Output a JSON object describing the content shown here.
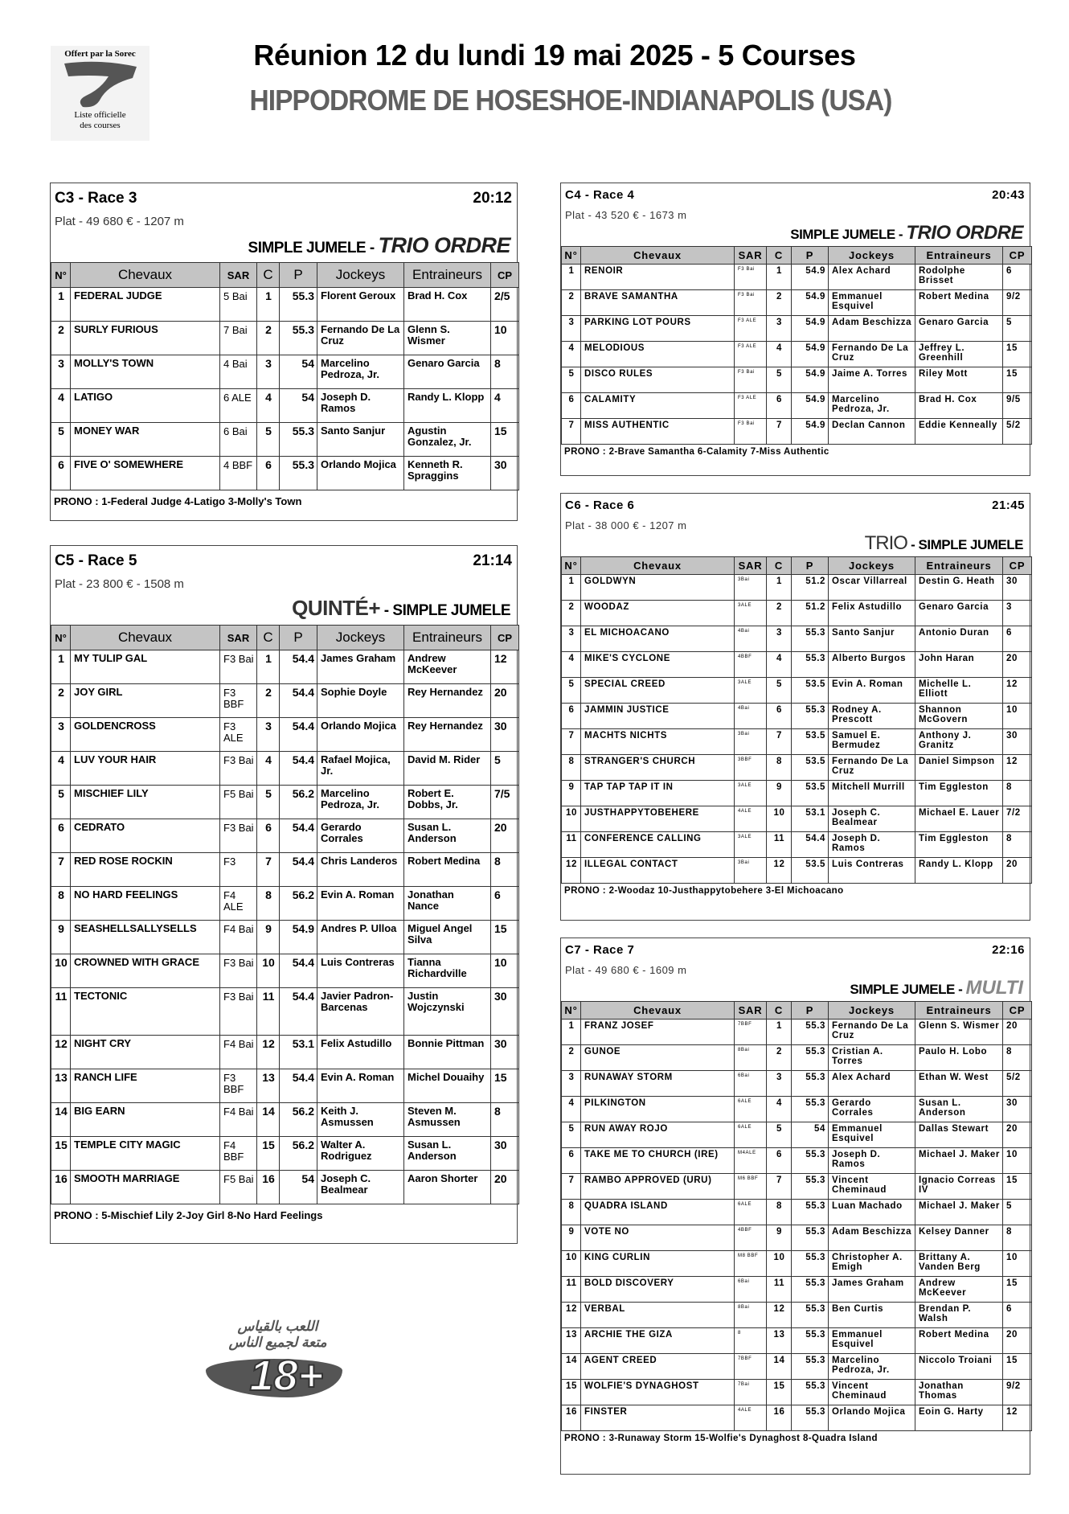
{
  "header": {
    "logo_top": "Offert par la Sorec",
    "logo_bottom_1": "Liste officielle",
    "logo_bottom_2": "des courses",
    "title": "Réunion 12 du lundi 19 mai 2025 - 5 Courses",
    "subtitle": "HIPPODROME DE HOSESHOE-INDIANAPOLIS (USA)"
  },
  "columns": [
    "N°",
    "Chevaux",
    "SAR",
    "C",
    "P",
    "Jockeys",
    "Entraineurs",
    "CP"
  ],
  "races": [
    {
      "code": "C3 -  Race 3",
      "time": "20:12",
      "conditions": "Plat - 49 680 € - 1207 m",
      "bets": [
        {
          "text": "SIMPLE JUMELE - ",
          "style": "plain"
        },
        {
          "text": "TRIO ORDRE",
          "style": "italic"
        }
      ],
      "rows": [
        [
          "1",
          "FEDERAL JUDGE",
          "5 Bai",
          "1",
          "55.3",
          "Florent Geroux",
          "Brad H. Cox",
          "2/5"
        ],
        [
          "2",
          "SURLY FURIOUS",
          "7 Bai",
          "2",
          "55.3",
          "Fernando De La Cruz",
          "Glenn S. Wismer",
          "10"
        ],
        [
          "3",
          "MOLLY'S TOWN",
          "4 Bai",
          "3",
          "54",
          "Marcelino Pedroza, Jr.",
          "Genaro Garcia",
          "8"
        ],
        [
          "4",
          "LATIGO",
          "6 ALE",
          "4",
          "54",
          "Joseph D. Ramos",
          "Randy L. Klopp",
          "4"
        ],
        [
          "5",
          "MONEY WAR",
          "6 Bai",
          "5",
          "55.3",
          "Santo Sanjur",
          "Agustin Gonzalez, Jr.",
          "15"
        ],
        [
          "6",
          "FIVE O' SOMEWHERE",
          "4 BBF",
          "6",
          "55.3",
          "Orlando Mojica",
          "Kenneth R. Spraggins",
          "30"
        ]
      ],
      "prono": "PRONO : 1-Federal Judge 4-Latigo 3-Molly's Town"
    },
    {
      "code": "C4 -  Race 4",
      "time": "20:43",
      "conditions": "Plat - 43 520 € - 1673 m",
      "bets": [
        {
          "text": "SIMPLE JUMELE - ",
          "style": "plain"
        },
        {
          "text": "TRIO ORDRE",
          "style": "italic"
        }
      ],
      "rows": [
        [
          "1",
          "RENOIR",
          "F3 Bai",
          "1",
          "54.9",
          "Alex Achard",
          "Rodolphe Brisset",
          "6"
        ],
        [
          "2",
          "BRAVE SAMANTHA",
          "F3 Bai",
          "2",
          "54.9",
          "Emmanuel Esquivel",
          "Robert Medina",
          "9/2"
        ],
        [
          "3",
          "PARKING LOT POURS",
          "F3 ALE",
          "3",
          "54.9",
          "Adam Beschizza",
          "Genaro Garcia",
          "5"
        ],
        [
          "4",
          "MELODIOUS",
          "F3 ALE",
          "4",
          "54.9",
          "Fernando De La Cruz",
          "Jeffrey L. Greenhill",
          "15"
        ],
        [
          "5",
          "DISCO RULES",
          "F3 Bai",
          "5",
          "54.9",
          "Jaime A. Torres",
          "Riley Mott",
          "15"
        ],
        [
          "6",
          "CALAMITY",
          "F3 ALE",
          "6",
          "54.9",
          "Marcelino Pedroza, Jr.",
          "Brad H. Cox",
          "9/5"
        ],
        [
          "7",
          "MISS AUTHENTIC",
          "F3 Bai",
          "7",
          "54.9",
          "Declan Cannon",
          "Eddie Kenneally",
          "5/2"
        ]
      ],
      "prono": "PRONO : 2-Brave Samantha 6-Calamity 7-Miss Authentic"
    },
    {
      "code": "C5 -  Race 5",
      "time": "21:14",
      "conditions": "Plat - 23 800 € - 1508 m",
      "bets": [
        {
          "text": "QUINTÉ+",
          "style": "big"
        },
        {
          "text": " - SIMPLE JUMELE",
          "style": "plain"
        }
      ],
      "rows": [
        [
          "1",
          "MY TULIP GAL",
          "F3 Bai",
          "1",
          "54.4",
          "James Graham",
          "Andrew McKeever",
          "12"
        ],
        [
          "2",
          "JOY GIRL",
          "F3 BBF",
          "2",
          "54.4",
          "Sophie Doyle",
          "Rey Hernandez",
          "20"
        ],
        [
          "3",
          "GOLDENCROSS",
          "F3 ALE",
          "3",
          "54.4",
          "Orlando Mojica",
          "Rey Hernandez",
          "30"
        ],
        [
          "4",
          "LUV YOUR HAIR",
          "F3 Bai",
          "4",
          "54.4",
          "Rafael Mojica, Jr.",
          "David M. Rider",
          "5"
        ],
        [
          "5",
          "MISCHIEF LILY",
          "F5 Bai",
          "5",
          "56.2",
          "Marcelino Pedroza, Jr.",
          "Robert E. Dobbs, Jr.",
          "7/5"
        ],
        [
          "6",
          "CEDRATO",
          "F3 Bai",
          "6",
          "54.4",
          "Gerardo Corrales",
          "Susan L. Anderson",
          "20"
        ],
        [
          "7",
          "RED ROSE ROCKIN",
          "F3",
          "7",
          "54.4",
          "Chris Landeros",
          "Robert Medina",
          "8"
        ],
        [
          "8",
          "NO HARD FEELINGS",
          "F4 ALE",
          "8",
          "56.2",
          "Evin A. Roman",
          "Jonathan Nance",
          "6"
        ],
        [
          "9",
          "SEASHELLSALLYSELLS",
          "F4 Bai",
          "9",
          "54.9",
          "Andres P. Ulloa",
          "Miguel Angel Silva",
          "15"
        ],
        [
          "10",
          "CROWNED WITH GRACE",
          "F3 Bai",
          "10",
          "54.4",
          "Luis Contreras",
          "Tianna Richardville",
          "10"
        ],
        [
          "11",
          "TECTONIC",
          "F3 Bai",
          "11",
          "54.4",
          "Javier Padron-Barcenas",
          "Justin Wojczynski",
          "30"
        ],
        [
          "12",
          "NIGHT CRY",
          "F4 Bai",
          "12",
          "53.1",
          "Felix Astudillo",
          "Bonnie Pittman",
          "30"
        ],
        [
          "13",
          "RANCH LIFE",
          "F3 BBF",
          "13",
          "54.4",
          "Evin A. Roman",
          "Michel Douaihy",
          "15"
        ],
        [
          "14",
          "BIG EARN",
          "F4 Bai",
          "14",
          "56.2",
          "Keith J. Asmussen",
          "Steven M. Asmussen",
          "8"
        ],
        [
          "15",
          "TEMPLE CITY MAGIC",
          "F4 BBF",
          "15",
          "56.2",
          "Walter A. Rodriguez",
          "Susan L. Anderson",
          "30"
        ],
        [
          "16",
          "SMOOTH MARRIAGE",
          "F5 Bai",
          "16",
          "54",
          "Joseph C. Bealmear",
          "Aaron Shorter",
          "20"
        ]
      ],
      "prono": "PRONO : 5-Mischief Lily 2-Joy Girl 8-No Hard Feelings"
    },
    {
      "code": "C6 -  Race 6",
      "time": "21:45",
      "conditions": "Plat - 38 000 € - 1207 m",
      "bets": [
        {
          "text": "TRIO",
          "style": "light"
        },
        {
          "text": " - SIMPLE JUMELE",
          "style": "plain"
        }
      ],
      "rows": [
        [
          "1",
          "GOLDWYN",
          "3Bai",
          "1",
          "51.2",
          "Oscar Villarreal",
          "Destin G. Heath",
          "30"
        ],
        [
          "2",
          "WOODAZ",
          "3ALE",
          "2",
          "51.2",
          "Felix Astudillo",
          "Genaro Garcia",
          "3"
        ],
        [
          "3",
          "EL MICHOACANO",
          "4Bai",
          "3",
          "55.3",
          "Santo Sanjur",
          "Antonio Duran",
          "6"
        ],
        [
          "4",
          "MIKE'S CYCLONE",
          "4BBF",
          "4",
          "55.3",
          "Alberto Burgos",
          "John Haran",
          "20"
        ],
        [
          "5",
          "SPECIAL CREED",
          "3ALE",
          "5",
          "53.5",
          "Evin A. Roman",
          "Michelle L. Elliott",
          "12"
        ],
        [
          "6",
          "JAMMIN JUSTICE",
          "4Bai",
          "6",
          "55.3",
          "Rodney A. Prescott",
          "Shannon McGovern",
          "10"
        ],
        [
          "7",
          "MACHTS NICHTS",
          "3Bai",
          "7",
          "53.5",
          "Samuel E. Bermudez",
          "Anthony J. Granitz",
          "30"
        ],
        [
          "8",
          "STRANGER'S CHURCH",
          "3BBF",
          "8",
          "53.5",
          "Fernando De La Cruz",
          "Daniel Simpson",
          "12"
        ],
        [
          "9",
          "TAP TAP TAP IT IN",
          "3ALE",
          "9",
          "53.5",
          "Mitchell Murrill",
          "Tim Eggleston",
          "8"
        ],
        [
          "10",
          "JUSTHAPPYTOBEHERE",
          "4ALE",
          "10",
          "53.1",
          "Joseph C. Bealmear",
          "Michael E. Lauer",
          "7/2"
        ],
        [
          "11",
          "CONFERENCE CALLING",
          "3ALE",
          "11",
          "54.4",
          "Joseph D. Ramos",
          "Tim Eggleston",
          "8"
        ],
        [
          "12",
          "ILLEGAL CONTACT",
          "3Bai",
          "12",
          "53.5",
          "Luis Contreras",
          "Randy L. Klopp",
          "20"
        ]
      ],
      "prono": "PRONO : 2-Woodaz 10-Justhappytobehere 3-El Michoacano"
    },
    {
      "code": "C7 -  Race 7",
      "time": "22:16",
      "conditions": "Plat - 49 680 € - 1609 m",
      "bets": [
        {
          "text": "SIMPLE JUMELE - ",
          "style": "plain"
        },
        {
          "text": "MULTI",
          "style": "italic-gray"
        }
      ],
      "rows": [
        [
          "1",
          "FRANZ JOSEF",
          "7BBF",
          "1",
          "55.3",
          "Fernando De La Cruz",
          "Glenn S. Wismer",
          "20"
        ],
        [
          "2",
          "GUNOE",
          "8Bai",
          "2",
          "55.3",
          "Cristian A. Torres",
          "Paulo H. Lobo",
          "8"
        ],
        [
          "3",
          "RUNAWAY STORM",
          "6Bai",
          "3",
          "55.3",
          "Alex Achard",
          "Ethan W. West",
          "5/2"
        ],
        [
          "4",
          "PILKINGTON",
          "6ALE",
          "4",
          "55.3",
          "Gerardo Corrales",
          "Susan L. Anderson",
          "30"
        ],
        [
          "5",
          "RUN AWAY ROJO",
          "6ALE",
          "5",
          "54",
          "Emmanuel Esquivel",
          "Dallas Stewart",
          "20"
        ],
        [
          "6",
          "TAKE ME TO CHURCH (IRE)",
          "M4ALE",
          "6",
          "55.3",
          "Joseph D. Ramos",
          "Michael J. Maker",
          "10"
        ],
        [
          "7",
          "RAMBO APPROVED (URU)",
          "M6 BBF",
          "7",
          "55.3",
          "Vincent Cheminaud",
          "Ignacio Correas IV",
          "15"
        ],
        [
          "8",
          "QUADRA ISLAND",
          "6ALE",
          "8",
          "55.3",
          "Luan Machado",
          "Michael J. Maker",
          "5"
        ],
        [
          "9",
          "VOTE NO",
          "4BBF",
          "9",
          "55.3",
          "Adam Beschizza",
          "Kelsey Danner",
          "8"
        ],
        [
          "10",
          "KING CURLIN",
          "M8 BBF",
          "10",
          "55.3",
          "Christopher A. Emigh",
          "Brittany A. Vanden Berg",
          "10"
        ],
        [
          "11",
          "BOLD DISCOVERY",
          "6Bai",
          "11",
          "55.3",
          "James Graham",
          "Andrew McKeever",
          "15"
        ],
        [
          "12",
          "VERBAL",
          "8Bai",
          "12",
          "55.3",
          "Ben Curtis",
          "Brendan P. Walsh",
          "6"
        ],
        [
          "13",
          "ARCHIE THE GIZA",
          "8",
          "13",
          "55.3",
          "Emmanuel Esquivel",
          "Robert Medina",
          "20"
        ],
        [
          "14",
          "AGENT CREED",
          "7BBF",
          "14",
          "55.3",
          "Marcelino Pedroza, Jr.",
          "Niccolo Troiani",
          "15"
        ],
        [
          "15",
          "WOLFIE'S DYNAGHOST",
          "7Bai",
          "15",
          "55.3",
          "Vincent Cheminaud",
          "Jonathan Thomas",
          "9/2"
        ],
        [
          "16",
          "FINSTER",
          "4ALE",
          "16",
          "55.3",
          "Orlando Mojica",
          "Eoin G. Harty",
          "12"
        ]
      ],
      "prono": "PRONO : 3-Runaway Storm 15-Wolfie's Dynaghost 8-Quadra Island"
    }
  ],
  "age_logo": {
    "arabic_1": "اللعب بالقياس",
    "arabic_2": "متعة لجميع الناس",
    "badge": "18+"
  }
}
